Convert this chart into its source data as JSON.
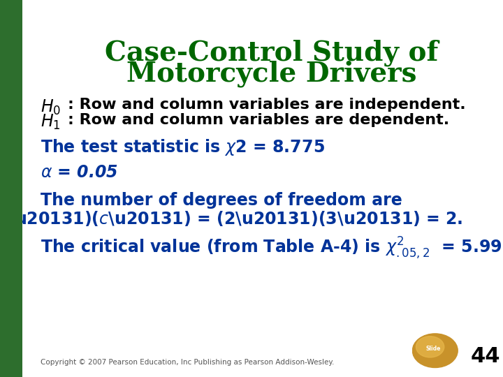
{
  "title_line1": "Case-Control Study of",
  "title_line2": "Motorcycle Drivers",
  "title_color": "#006600",
  "title_fontsize": 28,
  "body_color_black": "#000000",
  "body_color_blue": "#003399",
  "body_color_dark": "#1a1a2e",
  "background_color": "#ffffff",
  "left_bar_color": "#2d6e2d",
  "footer_text": "Copyright © 2007 Pearson Education, Inc Publishing as Pearson Addison-Wesley.",
  "slide_number": "44",
  "body_fontsize": 16,
  "alpha_fontsize": 16,
  "blue_fontsize": 17
}
